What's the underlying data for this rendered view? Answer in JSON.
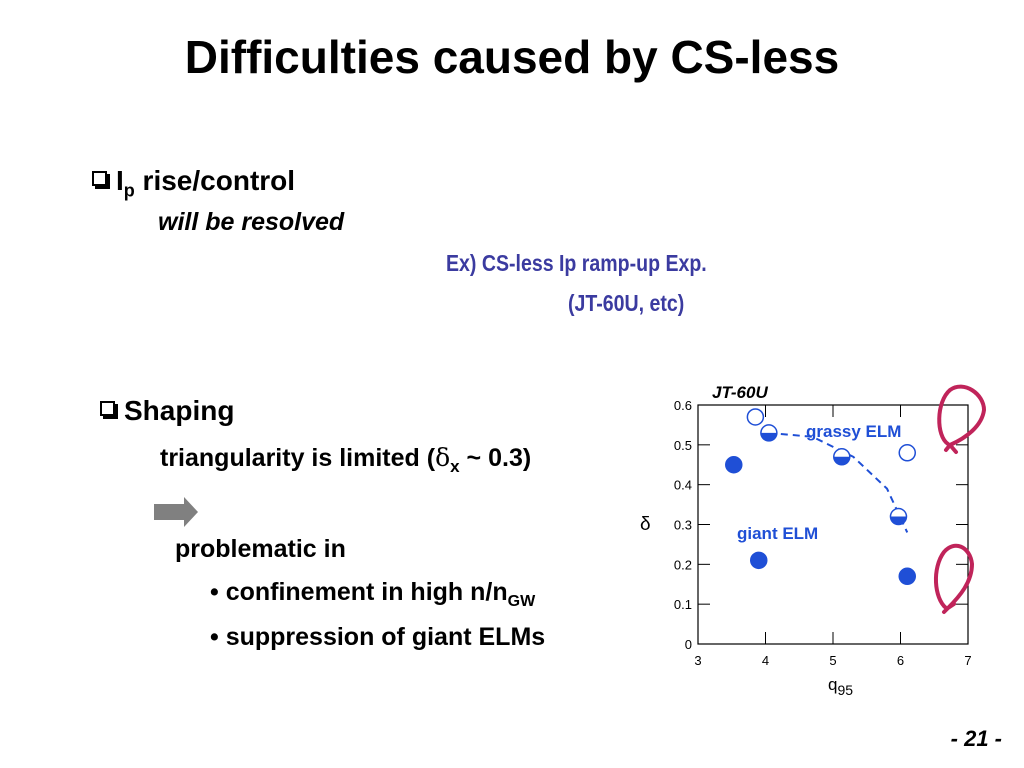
{
  "title": "Difficulties caused by CS-less",
  "section1": {
    "heading_main": "I",
    "heading_sub": "p",
    "heading_rest": " rise/control",
    "note": "will be resolved",
    "example_line1": "Ex) CS-less Ip ramp-up Exp.",
    "example_line2": "(JT-60U, etc)"
  },
  "section2": {
    "heading": "Shaping",
    "tri_text": "triangularity is limited (",
    "tri_delta": "δ",
    "tri_sub": "x",
    "tri_tilde": " ~ ",
    "tri_value": "0.3)",
    "problematic": "problematic in",
    "item1_main": "• confinement in high n/n",
    "item1_sub": "GW",
    "item2": "• suppression of giant ELMs"
  },
  "chart_data": {
    "type": "scatter",
    "title": "JT-60U",
    "xlabel": "q",
    "xlabel_sub": "95",
    "ylabel": "δ",
    "xlim": [
      3,
      7
    ],
    "ylim": [
      0,
      0.6
    ],
    "xticks": [
      "3",
      "4",
      "5",
      "6",
      "7"
    ],
    "yticks": [
      "0",
      "0.1",
      "0.2",
      "0.3",
      "0.4",
      "0.5",
      "0.6"
    ],
    "annotations": [
      "grassy ELM",
      "giant ELM"
    ],
    "series": [
      {
        "style": "filled",
        "x": [
          3.53,
          3.9,
          6.1
        ],
        "y": [
          0.45,
          0.21,
          0.17
        ]
      },
      {
        "style": "open",
        "x": [
          3.85,
          6.1
        ],
        "y": [
          0.57,
          0.48
        ]
      },
      {
        "style": "half",
        "x": [
          4.05,
          5.13,
          5.97
        ],
        "y": [
          0.53,
          0.47,
          0.32
        ]
      }
    ],
    "trend_line": {
      "x": [
        4.05,
        4.7,
        5.3,
        5.8,
        6.1
      ],
      "y": [
        0.53,
        0.52,
        0.47,
        0.39,
        0.28
      ]
    },
    "colors": {
      "marker": "#1f4fd6",
      "annotation": "#1f4fd6",
      "hand_marks": "#c0245a"
    }
  },
  "page_number": "- 21 -"
}
